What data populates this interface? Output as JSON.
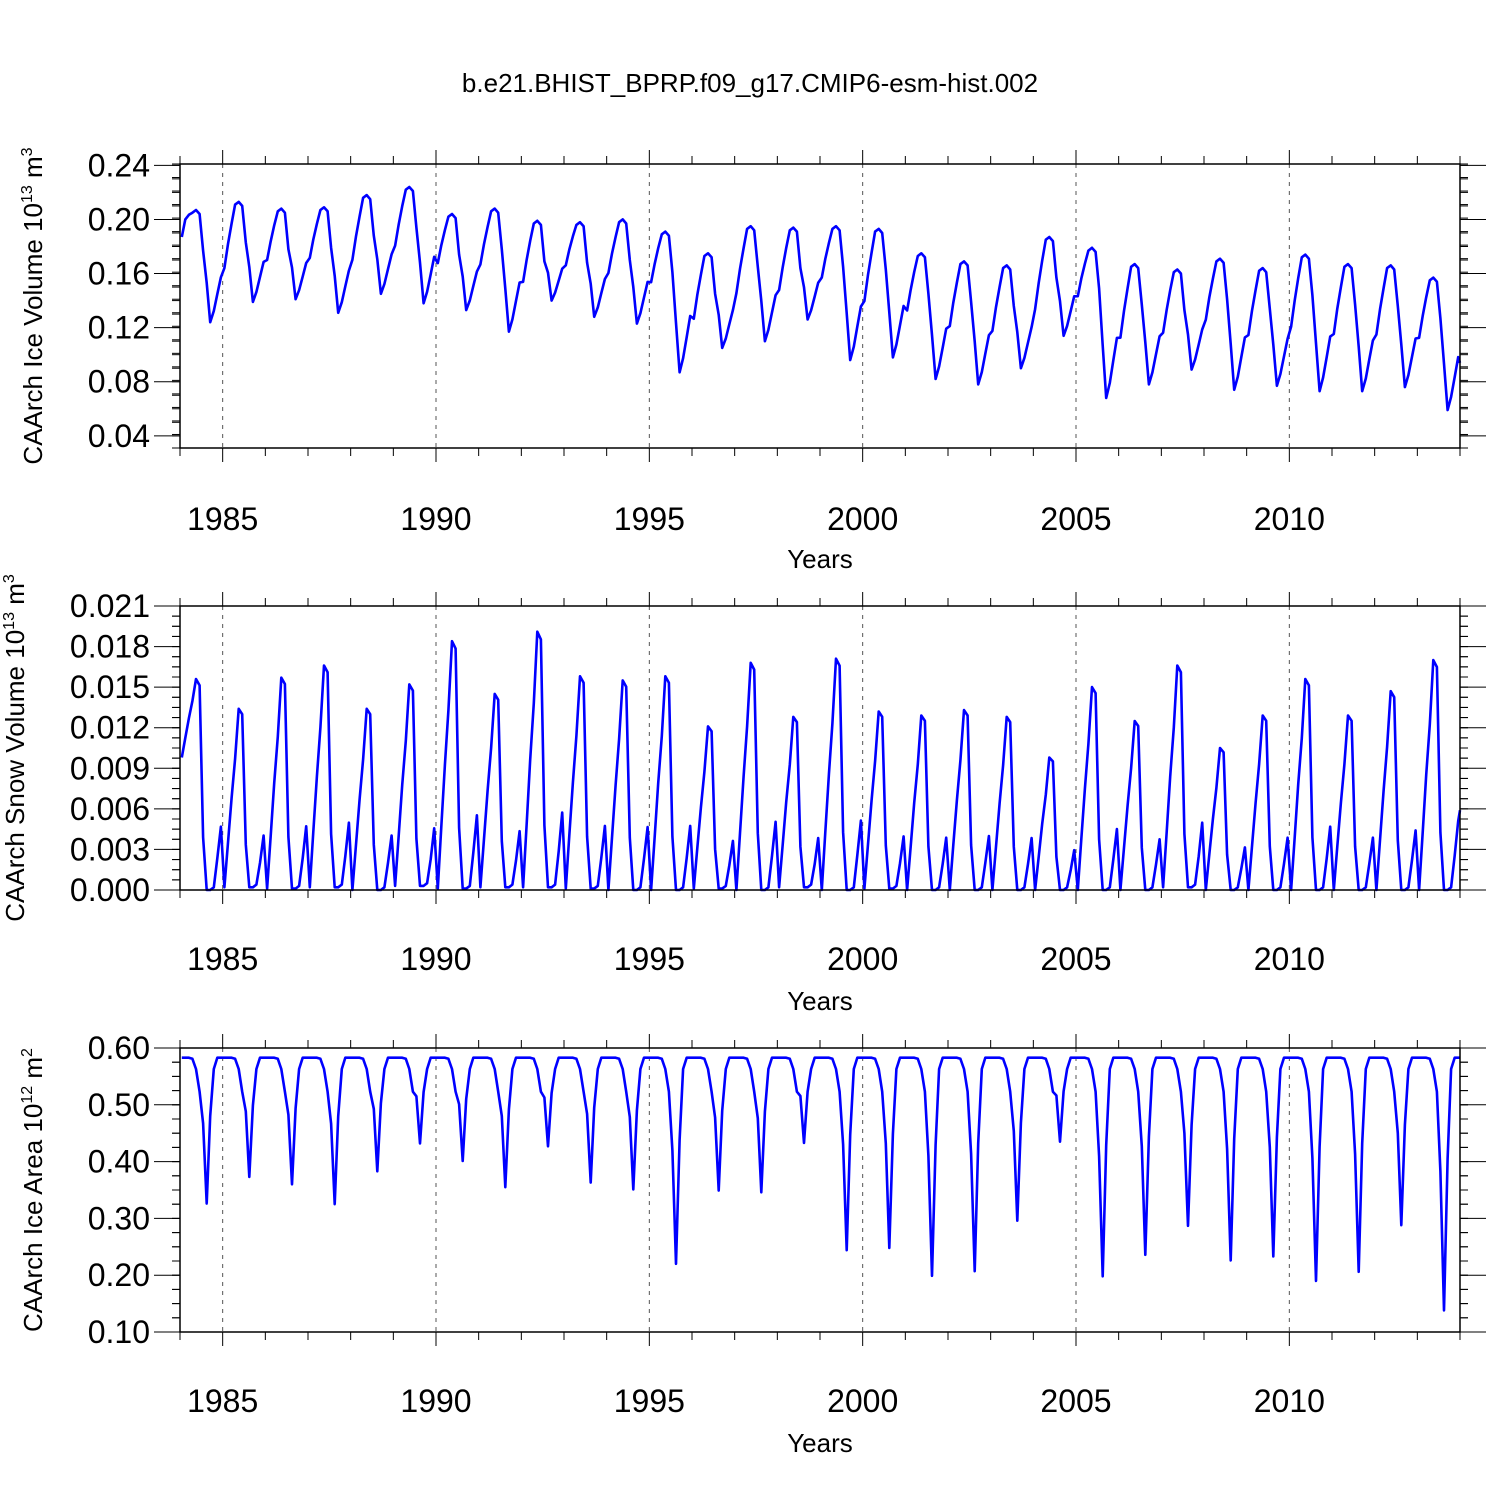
{
  "title": "b.e21.BHIST_BPRP.f09_g17.CMIP6-esm-hist.002",
  "line_color": "#0000ff",
  "chart_data": [
    {
      "type": "line",
      "name": "ice-volume",
      "ylabel_main": "CAArch Ice Volume 10",
      "ylabel_exp1": "13",
      "ylabel_unit": " m",
      "ylabel_exp2": "3",
      "xlabel": "Years",
      "xlim": [
        1984.0,
        2014.0
      ],
      "ylim": [
        0.031,
        0.241
      ],
      "xticks": [
        1985,
        1990,
        1995,
        2000,
        2005,
        2010
      ],
      "xtick_labels": [
        "1985",
        "1990",
        "1995",
        "2000",
        "2005",
        "2010"
      ],
      "yticks": [
        0.04,
        0.08,
        0.12,
        0.16,
        0.2,
        0.24
      ],
      "ytick_labels": [
        "0.04",
        "0.08",
        "0.12",
        "0.16",
        "0.20",
        "0.24"
      ],
      "maxima": [
        0.207,
        0.213,
        0.208,
        0.209,
        0.218,
        0.224,
        0.204,
        0.208,
        0.199,
        0.198,
        0.2,
        0.191,
        0.175,
        0.195,
        0.194,
        0.195,
        0.193,
        0.175,
        0.169,
        0.166,
        0.187,
        0.179,
        0.167,
        0.163,
        0.171,
        0.164,
        0.174,
        0.167,
        0.166,
        0.157
      ],
      "minima": [
        0.124,
        0.139,
        0.141,
        0.131,
        0.145,
        0.138,
        0.133,
        0.117,
        0.14,
        0.128,
        0.123,
        0.087,
        0.105,
        0.11,
        0.126,
        0.096,
        0.098,
        0.082,
        0.078,
        0.09,
        0.114,
        0.068,
        0.078,
        0.089,
        0.074,
        0.077,
        0.073,
        0.073,
        0.076,
        0.059
      ],
      "start_value": 0.187,
      "end_value": 0.094
    },
    {
      "type": "line",
      "name": "snow-volume",
      "ylabel_main": "CAArch Snow Volume 10",
      "ylabel_exp1": "13",
      "ylabel_unit": " m",
      "ylabel_exp2": "3",
      "xlabel": "Years",
      "xlim": [
        1984.0,
        2014.0
      ],
      "ylim": [
        0.0,
        0.021
      ],
      "xticks": [
        1985,
        1990,
        1995,
        2000,
        2005,
        2010
      ],
      "xtick_labels": [
        "1985",
        "1990",
        "1995",
        "2000",
        "2005",
        "2010"
      ],
      "yticks": [
        0.0,
        0.003,
        0.006,
        0.009,
        0.012,
        0.015,
        0.018,
        0.021
      ],
      "ytick_labels": [
        "0.000",
        "0.003",
        "0.006",
        "0.009",
        "0.012",
        "0.015",
        "0.018",
        "0.021"
      ],
      "maxima": [
        0.0156,
        0.0134,
        0.0157,
        0.0166,
        0.0134,
        0.0152,
        0.0184,
        0.0145,
        0.0191,
        0.0158,
        0.0155,
        0.0158,
        0.0121,
        0.0168,
        0.0128,
        0.0171,
        0.0132,
        0.0129,
        0.0133,
        0.0128,
        0.0098,
        0.015,
        0.0125,
        0.0166,
        0.0105,
        0.0129,
        0.0156,
        0.0129,
        0.0147,
        0.017
      ],
      "minima": [
        0.0,
        0.0002,
        0.0001,
        0.0002,
        0.0,
        0.0003,
        0.0001,
        0.0002,
        0.0002,
        0.0001,
        0.0,
        0.0,
        0.0001,
        0.0,
        0.0002,
        0.0,
        0.0001,
        0.0,
        0.0,
        0.0,
        0.0,
        0.0,
        0.0,
        0.0002,
        0.0,
        0.0,
        0.0,
        0.0,
        0.0,
        0.0
      ],
      "start_value": 0.0098,
      "end_value": 0.0059
    },
    {
      "type": "line",
      "name": "ice-area",
      "ylabel_main": "CAArch Ice Area 10",
      "ylabel_exp1": "12",
      "ylabel_unit": " m",
      "ylabel_exp2": "2",
      "xlabel": "Years",
      "xlim": [
        1984.0,
        2014.0
      ],
      "ylim": [
        0.1,
        0.6
      ],
      "xticks": [
        1985,
        1990,
        1995,
        2000,
        2005,
        2010
      ],
      "xtick_labels": [
        "1985",
        "1990",
        "1995",
        "2000",
        "2005",
        "2010"
      ],
      "yticks": [
        0.1,
        0.2,
        0.3,
        0.4,
        0.5,
        0.6
      ],
      "ytick_labels": [
        "0.10",
        "0.20",
        "0.30",
        "0.40",
        "0.50",
        "0.60"
      ],
      "maxima": [
        0.583,
        0.583,
        0.583,
        0.583,
        0.583,
        0.583,
        0.583,
        0.583,
        0.583,
        0.583,
        0.583,
        0.583,
        0.583,
        0.583,
        0.583,
        0.583,
        0.583,
        0.583,
        0.583,
        0.583,
        0.583,
        0.583,
        0.583,
        0.583,
        0.583,
        0.583,
        0.583,
        0.583,
        0.583,
        0.583
      ],
      "minima": [
        0.326,
        0.373,
        0.36,
        0.325,
        0.383,
        0.432,
        0.401,
        0.355,
        0.427,
        0.363,
        0.351,
        0.22,
        0.349,
        0.346,
        0.433,
        0.244,
        0.248,
        0.199,
        0.207,
        0.296,
        0.435,
        0.198,
        0.236,
        0.287,
        0.226,
        0.233,
        0.19,
        0.206,
        0.288,
        0.138
      ],
      "start_value": 0.583,
      "end_value": 0.583
    }
  ]
}
